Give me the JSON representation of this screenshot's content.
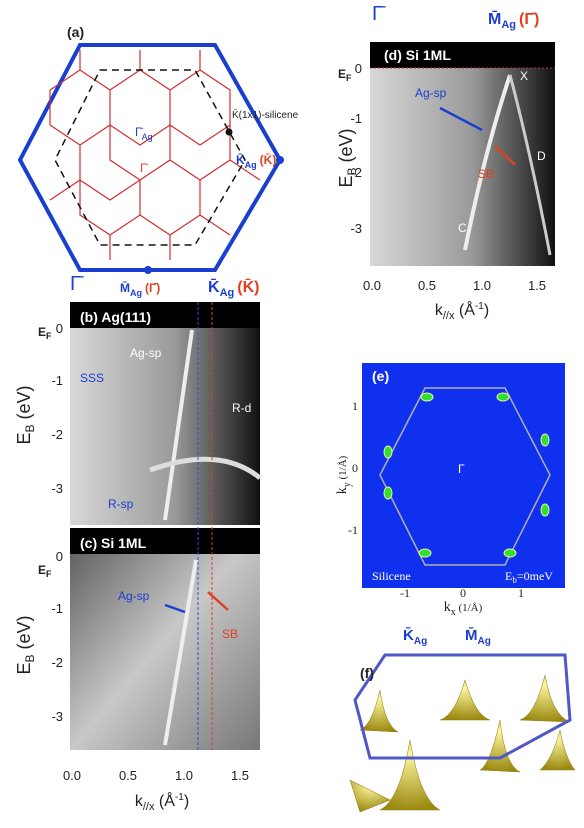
{
  "panel_a": {
    "label": "(a)",
    "k_silicene": "K̄(1x1)-silicene",
    "gamma_ag": {
      "main": "Γ̄",
      "sub": "Ag"
    },
    "gamma": "Γ̄",
    "k_ag": {
      "main": "K̄",
      "sub": "Ag",
      "alt": "(K̄)"
    },
    "m_ag": {
      "main": "M̄",
      "sub": "Ag",
      "alt": "(Γ̄)"
    }
  },
  "panel_d": {
    "label": "(d) Si 1ML",
    "top_gamma": "Γ̄",
    "top_m": {
      "main": "M̄",
      "sub": "Ag",
      "alt": "(Γ̄)"
    },
    "ef": {
      "main": "E",
      "sub": "F"
    },
    "yticks": [
      "0",
      "-1",
      "-2",
      "-3"
    ],
    "xticks": [
      "0.0",
      "0.5",
      "1.0",
      "1.5"
    ],
    "ylabel": {
      "main": "E",
      "sub": "B",
      "unit": " (eV)"
    },
    "xlabel": {
      "main": "k",
      "sub": "//x",
      "unit": " (Å",
      "sup": "-1",
      "close": ")"
    },
    "annotations": [
      "Ag-sp",
      "X",
      "SB",
      "D",
      "C"
    ]
  },
  "panel_b": {
    "label": "(b) Ag(111)",
    "top_gamma": "Γ̄",
    "top_k": {
      "main": "K̄",
      "sub": "Ag",
      "alt": "(K̄)"
    },
    "ef": {
      "main": "E",
      "sub": "F"
    },
    "yticks": [
      "0",
      "-1",
      "-2",
      "-3"
    ],
    "ylabel": {
      "main": "E",
      "sub": "B",
      "unit": " (eV)"
    },
    "annotations": [
      "SSS",
      "Ag-sp",
      "R-d",
      "R-sp"
    ]
  },
  "panel_c": {
    "label": "(c) Si 1ML",
    "ef": {
      "main": "E",
      "sub": "F"
    },
    "yticks": [
      "0",
      "-1",
      "-2",
      "-3"
    ],
    "ylabel": {
      "main": "E",
      "sub": "B",
      "unit": " (eV)"
    },
    "xticks": [
      "0.0",
      "0.5",
      "1.0",
      "1.5"
    ],
    "xlabel": {
      "main": "k",
      "sub": "//x",
      "unit": " (Å",
      "sup": "-1",
      "close": ")"
    },
    "annotations": [
      "Ag-sp",
      "SB"
    ]
  },
  "panel_e": {
    "label": "(e)",
    "yticks": [
      "1",
      "0",
      "-1"
    ],
    "xticks": [
      "-1",
      "0",
      "1"
    ],
    "ylabel": {
      "main": "k",
      "sub": "y",
      "unit": " (1/Å)"
    },
    "xlabel": {
      "main": "k",
      "sub": "x",
      "unit": " (1/Å)"
    },
    "gamma": "Γ",
    "material": "Silicene",
    "energy": "E",
    "energy_sub": "b",
    "energy_value": "=0meV"
  },
  "panel_f": {
    "label": "(f)",
    "k_ag": {
      "main": "K̄",
      "sub": "Ag"
    },
    "m_ag": {
      "main": "M̄",
      "sub": "Ag"
    }
  }
}
